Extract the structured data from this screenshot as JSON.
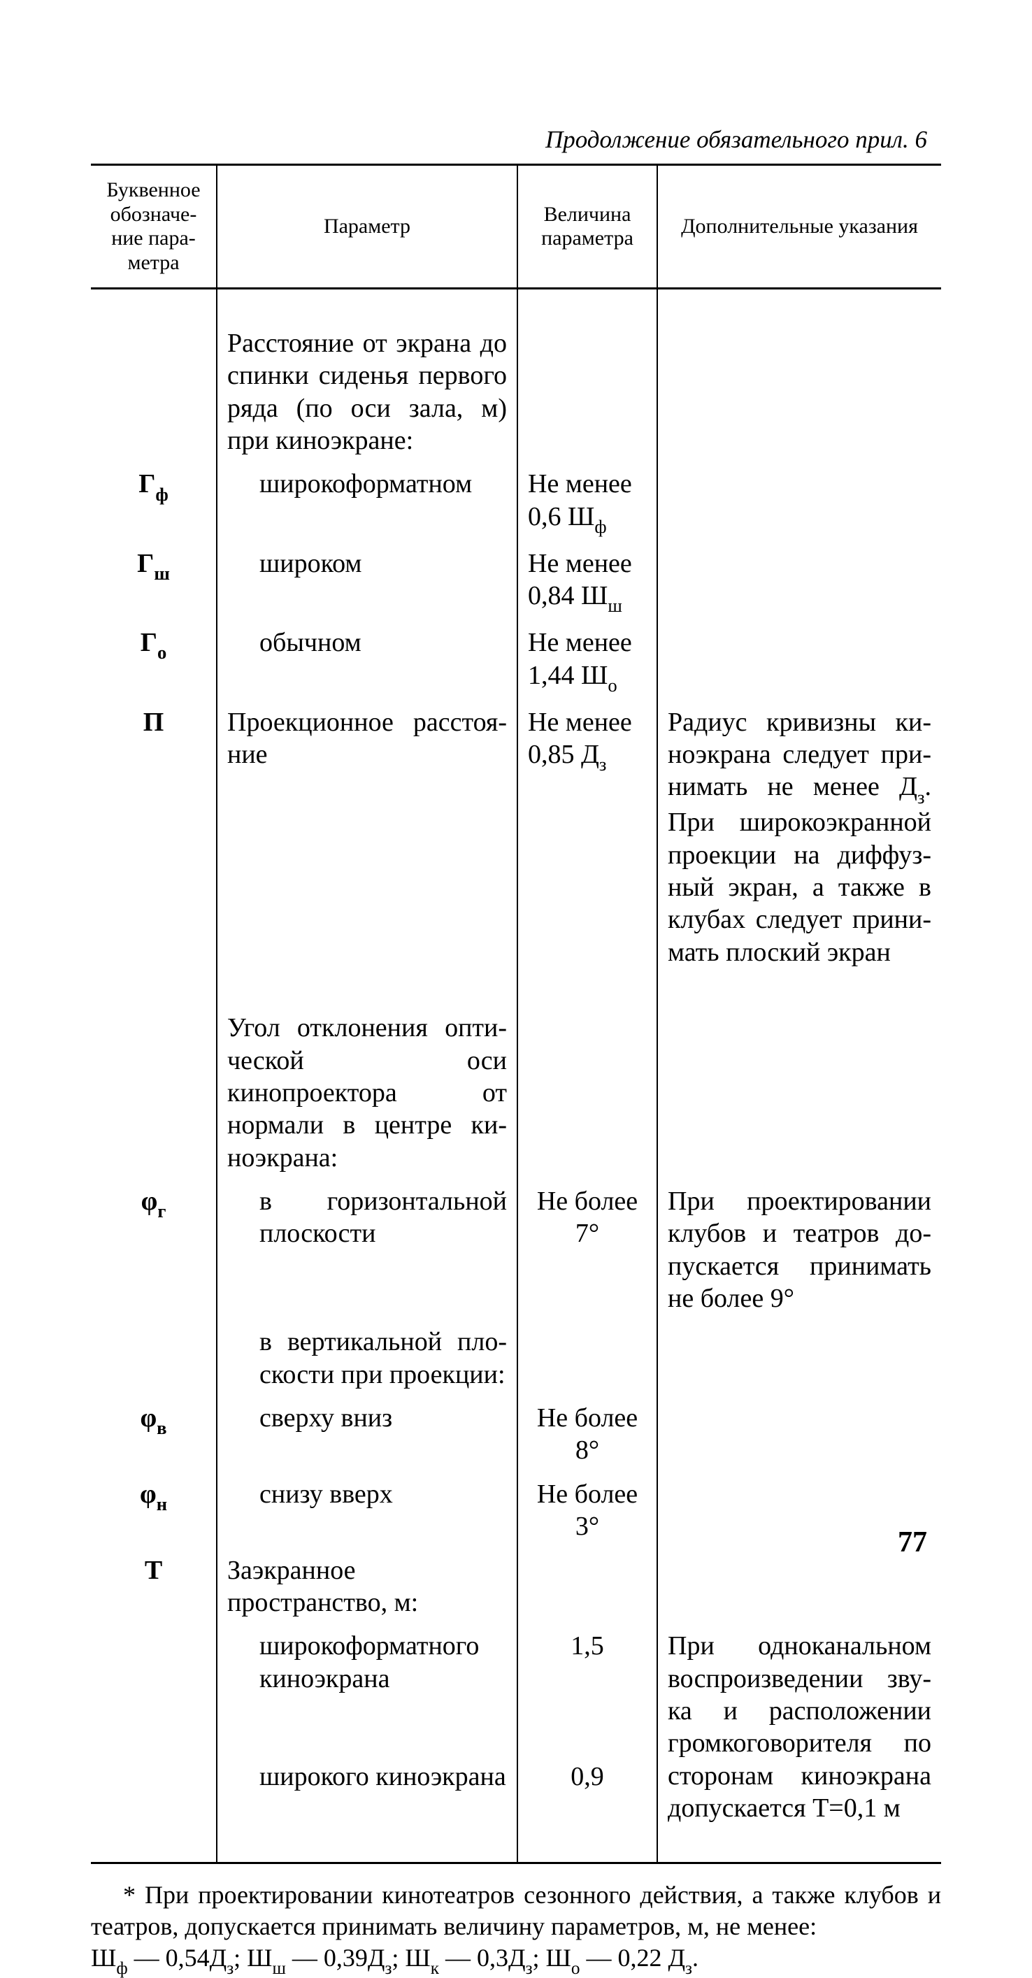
{
  "continuation": "Продолжение обязательного прил. 6",
  "headers": {
    "sym": "Буквенное обозначе-ние пара-метра",
    "par": "Параметр",
    "val": "Величина параметра",
    "note": "Дополнительные указания"
  },
  "rows": {
    "intro1": "Расстояние от экрана до спинки сиденья первого ряда (по оси зала, м) при киноэкране:",
    "r1": {
      "sym": "Гф",
      "par": "широкоформатном",
      "val": "Не менее 0,6 Шф"
    },
    "r2": {
      "sym": "Гш",
      "par": "широком",
      "val": "Не менее 0,84 Шш"
    },
    "r3": {
      "sym": "Го",
      "par": "обычном",
      "val": "Не менее 1,44 Шо"
    },
    "r4": {
      "sym": "П",
      "par": "Проекционное расстоя-ние",
      "val": "Не менее 0,85 Дз",
      "note": "Радиус кривизны ки-ноэкрана следует при-нимать не менее Дз. При широкоэкранной проекции на диффуз-ный экран, а также в клубах следует прини-мать плоский экран"
    },
    "intro2": "Угол отклонения опти-ческой оси кинопроектора от нормали в центре ки-ноэкрана:",
    "r5": {
      "sym": "φг",
      "par": "в горизонтальной плоскости",
      "val": "Не более 7°",
      "note": "При проектировании клубов и театров до-пускается принимать не более 9°"
    },
    "r5b": {
      "par": "в вертикальной пло-скости при проекции:"
    },
    "r6": {
      "sym": "φв",
      "par": "сверху вниз",
      "val": "Не более 8°"
    },
    "r7": {
      "sym": "φн",
      "par": "снизу вверх",
      "val": "Не более 3°"
    },
    "r8": {
      "sym": "Т",
      "par": "Заэкранное пространство, м:"
    },
    "r9": {
      "par": "широкоформатного киноэкрана",
      "val": "1,5",
      "note": "При одноканальном воспроизведении зву-ка и расположении громкоговорителя по сторонам киноэкрана допускается Т=0,1 м"
    },
    "r10": {
      "par": "широкого киноэкрана",
      "val": "0,9"
    }
  },
  "footnote": {
    "line1": "* При проектировании кинотеатров сезонного действия, а также клубов и театров, допускается принимать величину параметров, м, не менее:",
    "line2": "Шф — 0,54Дз; Шш — 0,39Дз; Шк — 0,3Дз; Шо — 0,22 Дз."
  },
  "page_number": "77"
}
